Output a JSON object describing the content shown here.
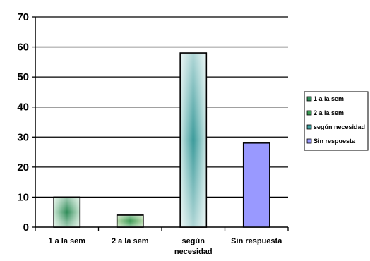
{
  "chart_data": {
    "type": "bar",
    "title": "",
    "xlabel": "",
    "ylabel": "",
    "ylim": [
      0,
      70
    ],
    "yticks": [
      0,
      10,
      20,
      30,
      40,
      50,
      60,
      70
    ],
    "grid": "horizontal",
    "categories": [
      [
        "1 a la sem"
      ],
      [
        "2 a la sem"
      ],
      [
        "según",
        "necesidad"
      ],
      [
        "Sin respuesta"
      ]
    ],
    "values": [
      10,
      4,
      58,
      28
    ],
    "colors": [
      "#2e8b57",
      "#3a9a52",
      "#40a0a0",
      "#9999ff"
    ],
    "legend": {
      "placement": "right",
      "entries": [
        "1 a la sem",
        "2 a la sem",
        "según necesidad",
        "Sin respuesta"
      ]
    }
  }
}
